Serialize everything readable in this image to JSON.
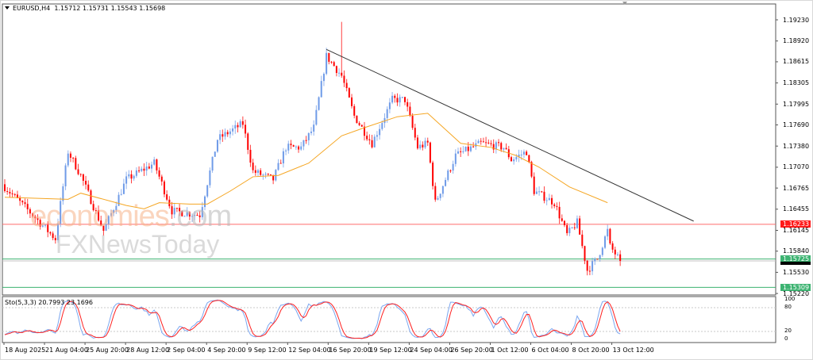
{
  "header": {
    "symbol": "EURUSD,H4",
    "ohlc": "1.15712 1.15731 1.15543 1.15698"
  },
  "indicator": {
    "label": "Sto(5,3,3) 20.7993 23.1696",
    "levels": [
      "100",
      "80",
      "20",
      "0"
    ]
  },
  "watermark": {
    "part1": "economies",
    "part2": ".com",
    "part3": "FXNewsToday"
  },
  "price_axis": [
    "1.19230",
    "1.18920",
    "1.18615",
    "1.18305",
    "1.17995",
    "1.17690",
    "1.17380",
    "1.17070",
    "1.16765",
    "1.16455",
    "1.16145",
    "1.15840",
    "1.15530",
    "1.15220"
  ],
  "price_tags": [
    {
      "value": "1.16233",
      "color": "#ff1a1a"
    },
    {
      "value": "1.15725",
      "color": "#3cb371"
    },
    {
      "value": "1.15309",
      "color": "#3cb371"
    }
  ],
  "time_axis": [
    "18 Aug 2025",
    "21 Aug 04:00",
    "25 Aug 20:00",
    "28 Aug 12:00",
    "2 Sep 04:00",
    "4 Sep 20:00",
    "9 Sep 12:00",
    "12 Sep 04:00",
    "16 Sep 20:00",
    "19 Sep 12:00",
    "24 Sep 04:00",
    "26 Sep 20:00",
    "1 Oct 12:00",
    "6 Oct 04:00",
    "8 Oct 20:00",
    "13 Oct 12:00"
  ],
  "colors": {
    "bull": "#6f9be8",
    "bear": "#ff0000",
    "ma": "#f5a623",
    "trend": "#333333",
    "sto_main": "#7aa6f0",
    "sto_signal": "#ff2020",
    "resistance": "#ff6b6b",
    "support": "#3cb371"
  },
  "chart_data": {
    "type": "candlestick",
    "symbol": "EURUSD",
    "timeframe": "H4",
    "ylim": [
      1.152,
      1.1935
    ],
    "bars_per_time_label": 16,
    "close_path": [
      [
        0,
        1.1678
      ],
      [
        11,
        1.1637
      ],
      [
        20,
        1.1602
      ],
      [
        25,
        1.173
      ],
      [
        30,
        1.1695
      ],
      [
        39,
        1.1614
      ],
      [
        48,
        1.1689
      ],
      [
        59,
        1.1713
      ],
      [
        66,
        1.1643
      ],
      [
        77,
        1.1637
      ],
      [
        84,
        1.1748
      ],
      [
        94,
        1.1771
      ],
      [
        98,
        1.1701
      ],
      [
        106,
        1.1689
      ],
      [
        111,
        1.1736
      ],
      [
        117,
        1.1736
      ],
      [
        122,
        1.1765
      ],
      [
        127,
        1.187
      ],
      [
        133,
        1.1841
      ],
      [
        138,
        1.1782
      ],
      [
        145,
        1.1742
      ],
      [
        153,
        1.1806
      ],
      [
        158,
        1.1806
      ],
      [
        163,
        1.1736
      ],
      [
        167,
        1.1742
      ],
      [
        170,
        1.1655
      ],
      [
        178,
        1.1724
      ],
      [
        188,
        1.1742
      ],
      [
        197,
        1.1736
      ],
      [
        200,
        1.1718
      ],
      [
        206,
        1.173
      ],
      [
        209,
        1.1672
      ],
      [
        217,
        1.1655
      ],
      [
        222,
        1.1608
      ],
      [
        226,
        1.1626
      ],
      [
        230,
        1.1556
      ],
      [
        234,
        1.1573
      ],
      [
        238,
        1.1614
      ],
      [
        239,
        1.1591
      ],
      [
        243,
        1.15698
      ]
    ],
    "moving_average": [
      [
        0,
        1.1663
      ],
      [
        25,
        1.166
      ],
      [
        30,
        1.1669
      ],
      [
        48,
        1.1651
      ],
      [
        55,
        1.1646
      ],
      [
        61,
        1.1655
      ],
      [
        73,
        1.1653
      ],
      [
        80,
        1.1653
      ],
      [
        89,
        1.1672
      ],
      [
        98,
        1.1693
      ],
      [
        108,
        1.1695
      ],
      [
        120,
        1.1713
      ],
      [
        133,
        1.1753
      ],
      [
        142,
        1.1765
      ],
      [
        155,
        1.1781
      ],
      [
        167,
        1.1786
      ],
      [
        180,
        1.1742
      ],
      [
        192,
        1.1736
      ],
      [
        202,
        1.1724
      ],
      [
        211,
        1.1707
      ],
      [
        223,
        1.1678
      ],
      [
        238,
        1.1655
      ]
    ],
    "trendline": [
      [
        127,
        1.1875
      ],
      [
        272,
        1.1628
      ]
    ],
    "horizontal_lines": [
      {
        "price": 1.16233,
        "kind": "resistance"
      },
      {
        "price": 1.15725,
        "kind": "support"
      },
      {
        "price": 1.15698,
        "kind": "bid"
      },
      {
        "price": 1.15309,
        "kind": "support"
      }
    ],
    "stochastic": {
      "k": 5,
      "d": 3,
      "slowing": 3,
      "last_main": 20.7993,
      "last_signal": 23.1696,
      "levels": [
        80,
        20
      ]
    }
  }
}
